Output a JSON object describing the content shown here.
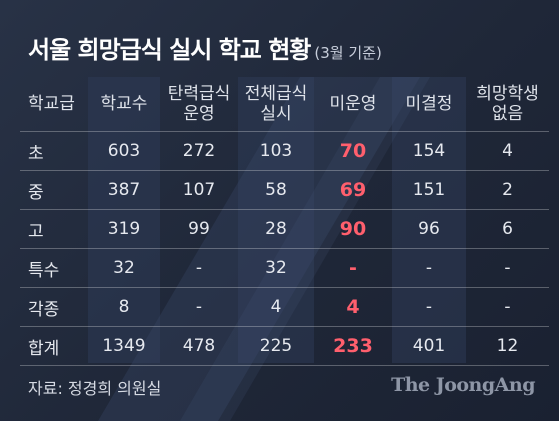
{
  "title": "서울 희망급식 실시 학교 현황",
  "subtitle": "(3월 기준)",
  "source": "자료: 정경희 의원실",
  "brand": "The JoongAng",
  "colors": {
    "background": "#1f2738",
    "highlight": "#ff5f6d",
    "column_band": "#2e3a55",
    "diagonal_band": "#3a4766"
  },
  "chart_data": {
    "type": "table",
    "columns": [
      "학교급",
      "학교수",
      "탄력급식\n운영",
      "전체급식\n실시",
      "미운영",
      "미결정",
      "희망학생\n없음"
    ],
    "highlight_column": 4,
    "rows": [
      [
        "초",
        "603",
        "272",
        "103",
        "70",
        "154",
        "4"
      ],
      [
        "중",
        "387",
        "107",
        "58",
        "69",
        "151",
        "2"
      ],
      [
        "고",
        "319",
        "99",
        "28",
        "90",
        "96",
        "6"
      ],
      [
        "특수",
        "32",
        "-",
        "32",
        "-",
        "-",
        "-"
      ],
      [
        "각종",
        "8",
        "-",
        "4",
        "4",
        "-",
        "-"
      ],
      [
        "합계",
        "1349",
        "478",
        "225",
        "233",
        "401",
        "12"
      ]
    ]
  }
}
